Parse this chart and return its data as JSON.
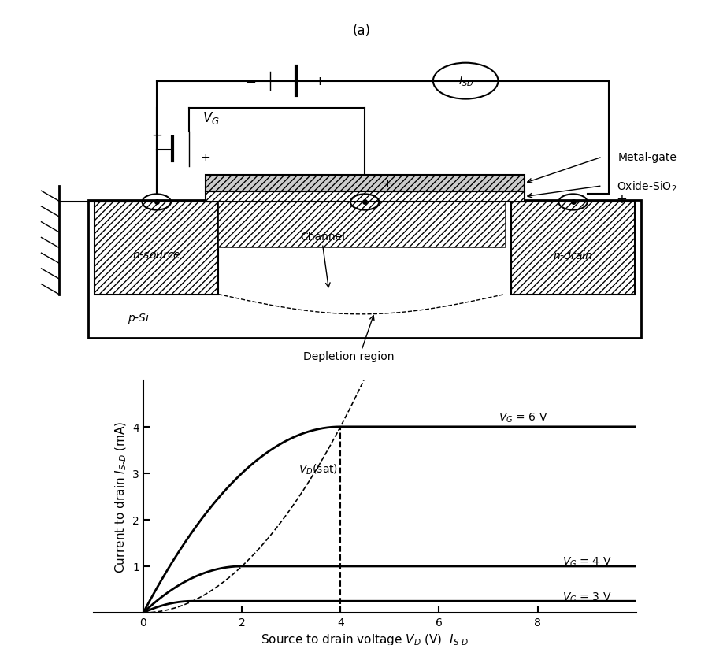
{
  "fig_width": 9.18,
  "fig_height": 8.2,
  "bg_color": "#ffffff",
  "label_a": "(a)",
  "curve_vg6_label": "$V_G$ = 6 V",
  "curve_vg4_label": "$V_G$ = 4 V",
  "curve_vg3_label": "$V_G$ = 3 V",
  "vd_sat_label": "$V_D$(sat)",
  "xlabel": "Source to drain voltage $V_D$ (V)  $I_{S-D}$",
  "ylabel": "Current to drain $I_{S-D}$ (mA)",
  "ylim": [
    0,
    5
  ],
  "xlim": [
    -1,
    10
  ],
  "yticks": [
    1,
    2,
    3,
    4
  ],
  "xticks": [
    0,
    2,
    4,
    6,
    8
  ],
  "line_color": "#000000",
  "vt": 2.0,
  "k_scale": 0.5,
  "vg6": 6,
  "vg4": 4,
  "vg3": 3,
  "vd_sat_vg6": 4.0,
  "sat_current_vg6": 4.0,
  "sat_current_vg4": 1.0,
  "sat_current_vg3": 0.25
}
